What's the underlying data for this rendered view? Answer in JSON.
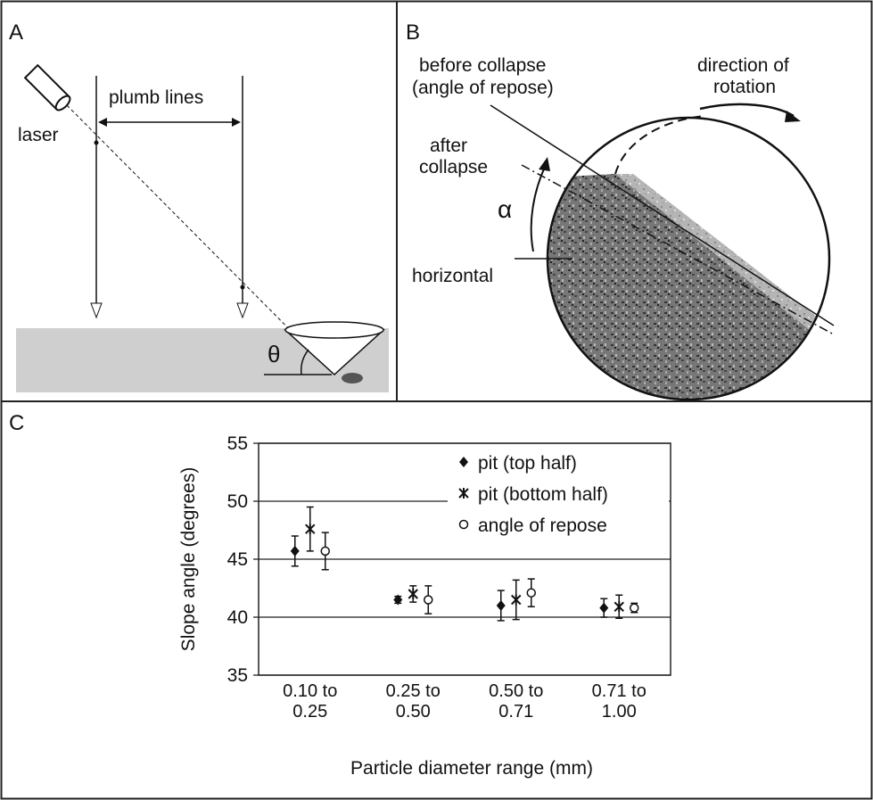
{
  "panel_a": {
    "label": "A",
    "laser": "laser",
    "plumb_lines": "plumb lines",
    "theta": "θ"
  },
  "panel_b": {
    "label": "B",
    "before_collapse": [
      "before collapse",
      "(angle of repose)"
    ],
    "after_collapse": [
      "after",
      "collapse"
    ],
    "alpha": "α",
    "horizontal": "horizontal",
    "direction": [
      "direction of",
      "rotation"
    ]
  },
  "panel_c": {
    "label": "C"
  },
  "chart_data": {
    "type": "errorbar",
    "ylabel": "Slope angle (degrees)",
    "xlabel": "Particle diameter range (mm)",
    "categories": [
      "0.10 to 0.25",
      "0.25 to 0.50",
      "0.50 to 0.71",
      "0.71 to 1.00"
    ],
    "ylim": [
      35,
      55
    ],
    "yticks": [
      35,
      40,
      45,
      50,
      55
    ],
    "grid": true,
    "legend": "upper right",
    "series": [
      {
        "name": "pit (top half)",
        "color": "#111111",
        "marker": "diamond",
        "values": [
          45.7,
          41.5,
          41.0,
          40.8
        ],
        "errors": [
          1.3,
          0.3,
          1.3,
          0.8
        ]
      },
      {
        "name": "pit (bottom half)",
        "color": "#111111",
        "marker": "x",
        "values": [
          47.6,
          42.0,
          41.5,
          40.9
        ],
        "errors": [
          1.9,
          0.7,
          1.7,
          1.0
        ]
      },
      {
        "name": "angle of repose",
        "color": "#111111",
        "marker": "circle",
        "values": [
          45.7,
          41.5,
          42.1,
          40.8
        ],
        "errors": [
          1.6,
          1.2,
          1.2,
          0.4
        ]
      }
    ]
  }
}
